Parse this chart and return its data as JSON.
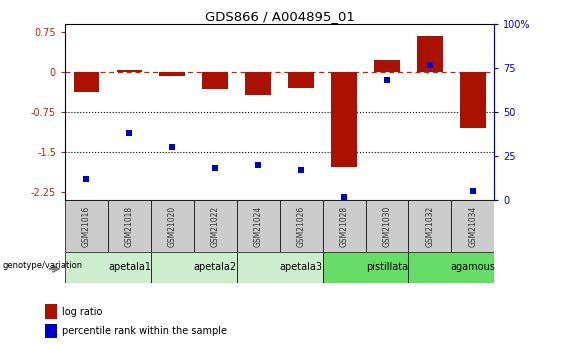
{
  "title": "GDS866 / A004895_01",
  "samples": [
    "GSM21016",
    "GSM21018",
    "GSM21020",
    "GSM21022",
    "GSM21024",
    "GSM21026",
    "GSM21028",
    "GSM21030",
    "GSM21032",
    "GSM21034"
  ],
  "log_ratio": [
    -0.38,
    0.04,
    -0.07,
    -0.32,
    -0.42,
    -0.3,
    -1.78,
    0.22,
    0.68,
    -1.05
  ],
  "percentile_rank": [
    12,
    38,
    30,
    18,
    20,
    17,
    2,
    68,
    77,
    5
  ],
  "groups": [
    {
      "label": "apetala1",
      "start": 0,
      "end": 2,
      "color": "#cceecc"
    },
    {
      "label": "apetala2",
      "start": 2,
      "end": 4,
      "color": "#cceecc"
    },
    {
      "label": "apetala3",
      "start": 4,
      "end": 6,
      "color": "#cceecc"
    },
    {
      "label": "pistillata",
      "start": 6,
      "end": 8,
      "color": "#66dd66"
    },
    {
      "label": "agamous",
      "start": 8,
      "end": 10,
      "color": "#66dd66"
    }
  ],
  "bar_color": "#aa1100",
  "dot_color": "#0000cc",
  "hline_color": "#cc2200",
  "ylim_left": [
    -2.4,
    0.9
  ],
  "ylim_right": [
    0,
    100
  ],
  "yticks_left": [
    0.75,
    0,
    -0.75,
    -1.5,
    -2.25
  ],
  "yticks_right": [
    100,
    75,
    50,
    25,
    0
  ],
  "hlines": [
    -0.75,
    -1.5
  ],
  "sample_box_color": "#cccccc",
  "sample_box_text_color": "#333333"
}
